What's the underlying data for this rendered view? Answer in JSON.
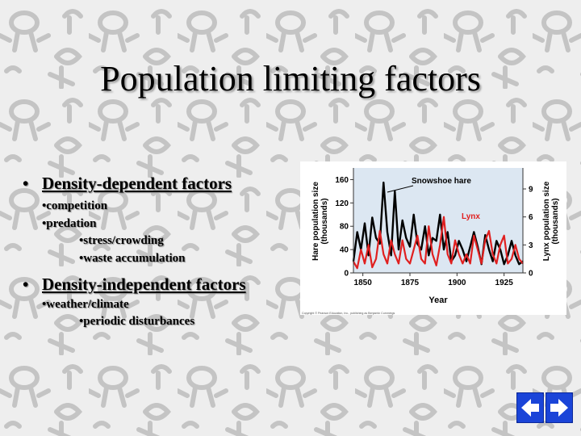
{
  "slide": {
    "title": "Population limiting factors",
    "bullets": [
      {
        "label": "Density-dependent factors",
        "items": [
          {
            "text": "•competition",
            "level": 2
          },
          {
            "text": "•predation",
            "level": 2
          },
          {
            "text": "•stress/crowding",
            "level": 3
          },
          {
            "text": "•waste accumulation",
            "level": 3
          }
        ]
      },
      {
        "label": "Density-independent factors",
        "items": [
          {
            "text": "•weather/climate",
            "level": 2
          },
          {
            "text": "•periodic disturbances",
            "level": 3
          }
        ]
      }
    ],
    "bullet_glyph": "•"
  },
  "chart_data": {
    "type": "line",
    "x": [
      1845,
      1847,
      1849,
      1851,
      1853,
      1855,
      1857,
      1859,
      1861,
      1863,
      1865,
      1867,
      1869,
      1871,
      1873,
      1875,
      1877,
      1879,
      1881,
      1883,
      1885,
      1887,
      1889,
      1891,
      1893,
      1895,
      1897,
      1899,
      1901,
      1903,
      1905,
      1907,
      1909,
      1911,
      1913,
      1915,
      1917,
      1919,
      1921,
      1923,
      1925,
      1927,
      1929,
      1931,
      1933,
      1935
    ],
    "series": [
      {
        "name": "Snowshoe hare",
        "axis": "left",
        "color": "#000000",
        "values": [
          20,
          70,
          40,
          85,
          30,
          95,
          60,
          50,
          155,
          70,
          30,
          140,
          40,
          90,
          60,
          45,
          100,
          50,
          40,
          80,
          30,
          60,
          55,
          100,
          40,
          70,
          20,
          30,
          55,
          40,
          20,
          45,
          70,
          45,
          15,
          65,
          40,
          20,
          55,
          40,
          15,
          30,
          55,
          30,
          15,
          20
        ]
      },
      {
        "name": "Lynx",
        "axis": "right",
        "color": "#e02020",
        "values": [
          1.2,
          0.5,
          2.5,
          1,
          3,
          0.6,
          1.5,
          4.5,
          2,
          1,
          3.5,
          2,
          1,
          3.5,
          1.5,
          1,
          2.5,
          4,
          1.5,
          1,
          5,
          2,
          0.8,
          3,
          6,
          2,
          1,
          3.5,
          2,
          1,
          2,
          1,
          4,
          2.5,
          1,
          3.5,
          4.5,
          2,
          1,
          3,
          4,
          1,
          1.5,
          3,
          1.5,
          1
        ]
      }
    ],
    "ylabel": "Hare population size (thousands)",
    "ylabel_line1": "Hare population size",
    "ylabel_line2": "(thousands)",
    "y2label": "Lynx population size (thousands)",
    "y2label_line1": "Lynx population size",
    "y2label_line2": "(thousands)",
    "xlabel": "Year",
    "xlim": [
      1845,
      1935
    ],
    "ylim": [
      0,
      180
    ],
    "y2lim": [
      0,
      11.25
    ],
    "xticks": [
      1850,
      1875,
      1900,
      1925
    ],
    "yticks": [
      0,
      40,
      80,
      120,
      160
    ],
    "y2ticks": [
      0,
      3,
      6,
      9
    ],
    "annotations": [
      "Snowshoe hare",
      "Lynx"
    ],
    "credit": "Copyright © Pearson Education, Inc., publishing as Benjamin Cummings",
    "plot_background": "#dce7f2"
  },
  "navigation": {
    "back_icon": "left-arrow-icon",
    "forward_icon": "right-arrow-icon",
    "color": "#1a44d8"
  },
  "background_pattern": "cartoon-doodle-pattern"
}
